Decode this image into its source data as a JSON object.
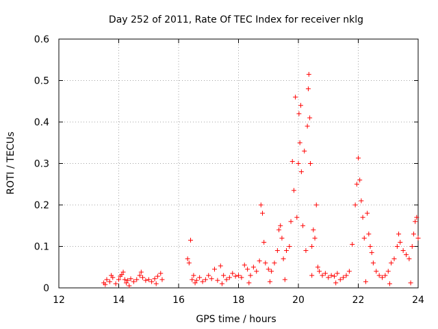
{
  "chart_data": {
    "type": "scatter",
    "title": "Day 252 of 2011, Rate Of TEC Index for receiver nklg",
    "xlabel": "GPS time / hours",
    "ylabel": "ROTI / TECUs",
    "xlim": [
      12,
      24
    ],
    "ylim": [
      0,
      0.6
    ],
    "x_ticks": [
      12,
      14,
      16,
      18,
      20,
      22,
      24
    ],
    "y_ticks": [
      0,
      0.1,
      0.2,
      0.3,
      0.4,
      0.5,
      0.6
    ],
    "x_tick_labels": [
      "12",
      "14",
      "16",
      "18",
      "20",
      "22",
      "24"
    ],
    "y_tick_labels": [
      "0",
      "0.1",
      "0.2",
      "0.3",
      "0.4",
      "0.5",
      "0.6"
    ],
    "grid": true,
    "marker": "+",
    "color": "#ff0000",
    "series": [
      {
        "name": "nklg",
        "points": [
          [
            13.5,
            0.012
          ],
          [
            13.6,
            0.02
          ],
          [
            13.7,
            0.015
          ],
          [
            13.75,
            0.03
          ],
          [
            13.8,
            0.025
          ],
          [
            13.9,
            0.01
          ],
          [
            14.0,
            0.02
          ],
          [
            14.05,
            0.028
          ],
          [
            14.1,
            0.032
          ],
          [
            14.15,
            0.038
          ],
          [
            14.2,
            0.02
          ],
          [
            14.25,
            0.012
          ],
          [
            14.3,
            0.018
          ],
          [
            14.4,
            0.022
          ],
          [
            14.5,
            0.015
          ],
          [
            14.6,
            0.02
          ],
          [
            14.7,
            0.03
          ],
          [
            14.75,
            0.038
          ],
          [
            14.8,
            0.025
          ],
          [
            14.9,
            0.018
          ],
          [
            15.0,
            0.02
          ],
          [
            15.1,
            0.015
          ],
          [
            15.2,
            0.022
          ],
          [
            15.3,
            0.028
          ],
          [
            15.4,
            0.035
          ],
          [
            15.45,
            0.02
          ],
          [
            16.3,
            0.07
          ],
          [
            16.35,
            0.06
          ],
          [
            16.4,
            0.115
          ],
          [
            16.45,
            0.02
          ],
          [
            16.5,
            0.03
          ],
          [
            16.6,
            0.018
          ],
          [
            16.7,
            0.025
          ],
          [
            16.8,
            0.015
          ],
          [
            16.9,
            0.02
          ],
          [
            17.0,
            0.03
          ],
          [
            17.1,
            0.022
          ],
          [
            17.2,
            0.045
          ],
          [
            17.3,
            0.018
          ],
          [
            17.4,
            0.053
          ],
          [
            17.5,
            0.03
          ],
          [
            17.6,
            0.02
          ],
          [
            17.7,
            0.025
          ],
          [
            17.8,
            0.035
          ],
          [
            17.9,
            0.028
          ],
          [
            18.0,
            0.03
          ],
          [
            18.1,
            0.025
          ],
          [
            18.2,
            0.055
          ],
          [
            18.3,
            0.045
          ],
          [
            18.4,
            0.03
          ],
          [
            18.5,
            0.05
          ],
          [
            18.6,
            0.04
          ],
          [
            18.7,
            0.065
          ],
          [
            18.75,
            0.2
          ],
          [
            18.8,
            0.18
          ],
          [
            18.85,
            0.11
          ],
          [
            18.9,
            0.06
          ],
          [
            19.0,
            0.045
          ],
          [
            19.1,
            0.04
          ],
          [
            19.2,
            0.06
          ],
          [
            19.3,
            0.09
          ],
          [
            19.35,
            0.14
          ],
          [
            19.4,
            0.15
          ],
          [
            19.45,
            0.12
          ],
          [
            19.5,
            0.07
          ],
          [
            19.6,
            0.09
          ],
          [
            19.7,
            0.1
          ],
          [
            19.75,
            0.16
          ],
          [
            19.8,
            0.305
          ],
          [
            19.85,
            0.235
          ],
          [
            19.9,
            0.46
          ],
          [
            19.95,
            0.17
          ],
          [
            20.0,
            0.3
          ],
          [
            20.02,
            0.42
          ],
          [
            20.05,
            0.35
          ],
          [
            20.08,
            0.44
          ],
          [
            20.1,
            0.28
          ],
          [
            20.15,
            0.15
          ],
          [
            20.2,
            0.33
          ],
          [
            20.25,
            0.09
          ],
          [
            20.3,
            0.39
          ],
          [
            20.33,
            0.48
          ],
          [
            20.35,
            0.515
          ],
          [
            20.38,
            0.41
          ],
          [
            20.4,
            0.3
          ],
          [
            20.45,
            0.1
          ],
          [
            20.5,
            0.14
          ],
          [
            20.55,
            0.12
          ],
          [
            20.6,
            0.2
          ],
          [
            20.65,
            0.05
          ],
          [
            20.7,
            0.04
          ],
          [
            20.8,
            0.03
          ],
          [
            20.9,
            0.035
          ],
          [
            21.0,
            0.025
          ],
          [
            21.1,
            0.03
          ],
          [
            21.2,
            0.028
          ],
          [
            21.3,
            0.035
          ],
          [
            21.4,
            0.02
          ],
          [
            21.5,
            0.025
          ],
          [
            21.6,
            0.03
          ],
          [
            21.7,
            0.04
          ],
          [
            21.8,
            0.105
          ],
          [
            21.9,
            0.2
          ],
          [
            21.95,
            0.25
          ],
          [
            22.0,
            0.313
          ],
          [
            22.05,
            0.26
          ],
          [
            22.1,
            0.21
          ],
          [
            22.15,
            0.17
          ],
          [
            22.2,
            0.12
          ],
          [
            22.3,
            0.18
          ],
          [
            22.35,
            0.13
          ],
          [
            22.4,
            0.1
          ],
          [
            22.45,
            0.085
          ],
          [
            22.5,
            0.06
          ],
          [
            22.6,
            0.04
          ],
          [
            22.7,
            0.03
          ],
          [
            22.8,
            0.025
          ],
          [
            22.9,
            0.03
          ],
          [
            23.0,
            0.04
          ],
          [
            23.1,
            0.06
          ],
          [
            23.2,
            0.07
          ],
          [
            23.3,
            0.1
          ],
          [
            23.35,
            0.13
          ],
          [
            23.4,
            0.11
          ],
          [
            23.5,
            0.09
          ],
          [
            23.6,
            0.08
          ],
          [
            23.7,
            0.07
          ],
          [
            23.8,
            0.1
          ],
          [
            23.85,
            0.13
          ],
          [
            23.9,
            0.16
          ],
          [
            23.95,
            0.17
          ],
          [
            24.0,
            0.12
          ],
          [
            13.55,
            0.008
          ],
          [
            14.35,
            0.005
          ],
          [
            15.25,
            0.01
          ],
          [
            16.55,
            0.012
          ],
          [
            17.45,
            0.01
          ],
          [
            18.35,
            0.012
          ],
          [
            19.05,
            0.015
          ],
          [
            19.55,
            0.02
          ],
          [
            20.45,
            0.03
          ],
          [
            21.25,
            0.012
          ],
          [
            22.25,
            0.015
          ],
          [
            23.05,
            0.01
          ],
          [
            23.75,
            0.012
          ]
        ]
      }
    ]
  }
}
